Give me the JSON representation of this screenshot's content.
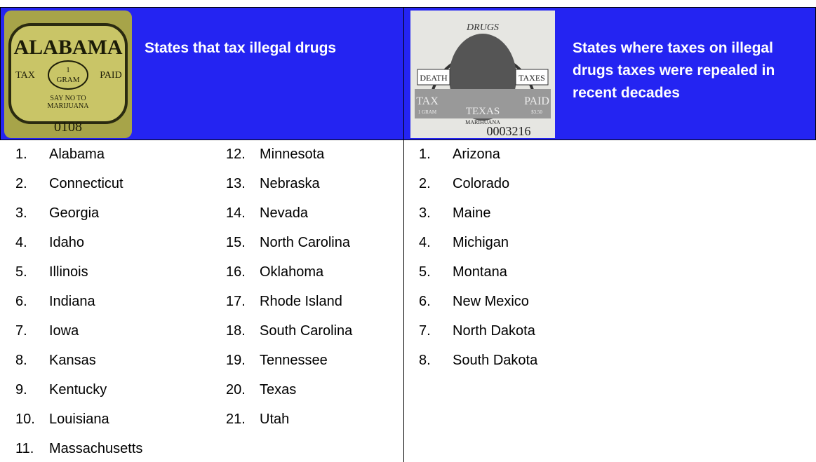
{
  "header": {
    "left": {
      "title": "States that tax illegal drugs",
      "stamp": {
        "state": "ALABAMA",
        "tax": "TAX",
        "one": "1",
        "gram": "GRAM",
        "paid": "PAID",
        "say": "SAY NO TO",
        "drug": "MARIJUANA",
        "serial": "0108"
      }
    },
    "right": {
      "title": "States where taxes on illegal drugs taxes were repealed in recent decades",
      "stamp": {
        "top": "DRUGS",
        "death": "DEATH",
        "taxes": "TAXES",
        "tax": "TAX",
        "gram": "1 GRAM",
        "state": "TEXAS",
        "paid": "PAID",
        "price": "$3.50",
        "drug": "MARIHUANA",
        "serial": "0003216"
      }
    }
  },
  "lists": {
    "left": {
      "columns": [
        [
          {
            "number": "1.",
            "name": "Alabama"
          },
          {
            "number": "2.",
            "name": "Connecticut"
          },
          {
            "number": "3.",
            "name": "Georgia"
          },
          {
            "number": "4.",
            "name": "Idaho"
          },
          {
            "number": "5.",
            "name": "Illinois"
          },
          {
            "number": "6.",
            "name": "Indiana"
          },
          {
            "number": "7.",
            "name": "Iowa"
          },
          {
            "number": "8.",
            "name": "Kansas"
          },
          {
            "number": "9.",
            "name": "Kentucky"
          },
          {
            "number": "10.",
            "name": "Louisiana"
          },
          {
            "number": "11.",
            "name": "Massachusetts"
          }
        ],
        [
          {
            "number": "12.",
            "name": "Minnesota"
          },
          {
            "number": "13.",
            "name": "Nebraska"
          },
          {
            "number": "14.",
            "name": "Nevada"
          },
          {
            "number": "15.",
            "name": "North Carolina"
          },
          {
            "number": "16.",
            "name": "Oklahoma"
          },
          {
            "number": "17.",
            "name": "Rhode Island"
          },
          {
            "number": "18.",
            "name": "South Carolina"
          },
          {
            "number": "19.",
            "name": "Tennessee"
          },
          {
            "number": "20.",
            "name": "Texas"
          },
          {
            "number": "21.",
            "name": "Utah"
          }
        ]
      ]
    },
    "right": {
      "columns": [
        [
          {
            "number": "1.",
            "name": "Arizona"
          },
          {
            "number": "2.",
            "name": "Colorado"
          },
          {
            "number": "3.",
            "name": "Maine"
          },
          {
            "number": "4.",
            "name": "Michigan"
          },
          {
            "number": "5.",
            "name": "Montana"
          },
          {
            "number": "6.",
            "name": "New Mexico"
          },
          {
            "number": "7.",
            "name": "North Dakota"
          },
          {
            "number": "8.",
            "name": "South Dakota"
          }
        ]
      ]
    }
  }
}
